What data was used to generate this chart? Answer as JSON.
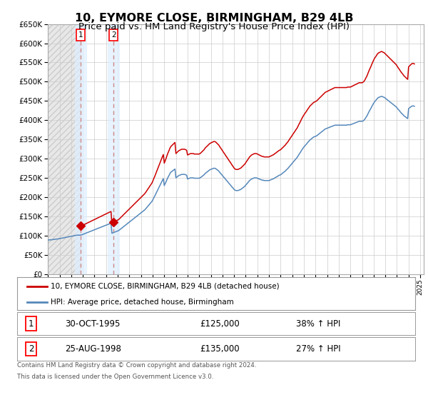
{
  "title": "10, EYMORE CLOSE, BIRMINGHAM, B29 4LB",
  "subtitle": "Price paid vs. HM Land Registry's House Price Index (HPI)",
  "title_fontsize": 11.5,
  "subtitle_fontsize": 9.5,
  "bg_color": "#ffffff",
  "grid_color": "#cccccc",
  "ylim": [
    0,
    650000
  ],
  "yticks": [
    0,
    50000,
    100000,
    150000,
    200000,
    250000,
    300000,
    350000,
    400000,
    450000,
    500000,
    550000,
    600000,
    650000
  ],
  "transactions": [
    {
      "year": 1995.83,
      "price": 125000,
      "label": "1",
      "date_str": "30-OCT-1995",
      "price_str": "£125,000",
      "pct": "38% ↑ HPI"
    },
    {
      "year": 1998.65,
      "price": 135000,
      "label": "2",
      "date_str": "25-AUG-1998",
      "price_str": "£135,000",
      "pct": "27% ↑ HPI"
    }
  ],
  "red_line_color": "#cc0000",
  "blue_line_color": "#5588bb",
  "vline_color": "#dd6666",
  "legend_label_red": "10, EYMORE CLOSE, BIRMINGHAM, B29 4LB (detached house)",
  "legend_label_blue": "HPI: Average price, detached house, Birmingham",
  "footer_line1": "Contains HM Land Registry data © Crown copyright and database right 2024.",
  "footer_line2": "This data is licensed under the Open Government Licence v3.0.",
  "hpi_years": [
    1993.0,
    1993.08,
    1993.17,
    1993.25,
    1993.33,
    1993.42,
    1993.5,
    1993.58,
    1993.67,
    1993.75,
    1993.83,
    1993.92,
    1994.0,
    1994.08,
    1994.17,
    1994.25,
    1994.33,
    1994.42,
    1994.5,
    1994.58,
    1994.67,
    1994.75,
    1994.83,
    1994.92,
    1995.0,
    1995.08,
    1995.17,
    1995.25,
    1995.33,
    1995.42,
    1995.5,
    1995.58,
    1995.67,
    1995.75,
    1995.83,
    1995.92,
    1996.0,
    1996.08,
    1996.17,
    1996.25,
    1996.33,
    1996.42,
    1996.5,
    1996.58,
    1996.67,
    1996.75,
    1996.83,
    1996.92,
    1997.0,
    1997.08,
    1997.17,
    1997.25,
    1997.33,
    1997.42,
    1997.5,
    1997.58,
    1997.67,
    1997.75,
    1997.83,
    1997.92,
    1998.0,
    1998.08,
    1998.17,
    1998.25,
    1998.33,
    1998.42,
    1998.5,
    1998.58,
    1998.67,
    1998.75,
    1998.83,
    1998.92,
    1999.0,
    1999.08,
    1999.17,
    1999.25,
    1999.33,
    1999.42,
    1999.5,
    1999.58,
    1999.67,
    1999.75,
    1999.83,
    1999.92,
    2000.0,
    2000.08,
    2000.17,
    2000.25,
    2000.33,
    2000.42,
    2000.5,
    2000.58,
    2000.67,
    2000.75,
    2000.83,
    2000.92,
    2001.0,
    2001.08,
    2001.17,
    2001.25,
    2001.33,
    2001.42,
    2001.5,
    2001.58,
    2001.67,
    2001.75,
    2001.83,
    2001.92,
    2002.0,
    2002.08,
    2002.17,
    2002.25,
    2002.33,
    2002.42,
    2002.5,
    2002.58,
    2002.67,
    2002.75,
    2002.83,
    2002.92,
    2003.0,
    2003.08,
    2003.17,
    2003.25,
    2003.33,
    2003.42,
    2003.5,
    2003.58,
    2003.67,
    2003.75,
    2003.83,
    2003.92,
    2004.0,
    2004.08,
    2004.17,
    2004.25,
    2004.33,
    2004.42,
    2004.5,
    2004.58,
    2004.67,
    2004.75,
    2004.83,
    2004.92,
    2005.0,
    2005.08,
    2005.17,
    2005.25,
    2005.33,
    2005.42,
    2005.5,
    2005.58,
    2005.67,
    2005.75,
    2005.83,
    2005.92,
    2006.0,
    2006.08,
    2006.17,
    2006.25,
    2006.33,
    2006.42,
    2006.5,
    2006.58,
    2006.67,
    2006.75,
    2006.83,
    2006.92,
    2007.0,
    2007.08,
    2007.17,
    2007.25,
    2007.33,
    2007.42,
    2007.5,
    2007.58,
    2007.67,
    2007.75,
    2007.83,
    2007.92,
    2008.0,
    2008.08,
    2008.17,
    2008.25,
    2008.33,
    2008.42,
    2008.5,
    2008.58,
    2008.67,
    2008.75,
    2008.83,
    2008.92,
    2009.0,
    2009.08,
    2009.17,
    2009.25,
    2009.33,
    2009.42,
    2009.5,
    2009.58,
    2009.67,
    2009.75,
    2009.83,
    2009.92,
    2010.0,
    2010.08,
    2010.17,
    2010.25,
    2010.33,
    2010.42,
    2010.5,
    2010.58,
    2010.67,
    2010.75,
    2010.83,
    2010.92,
    2011.0,
    2011.08,
    2011.17,
    2011.25,
    2011.33,
    2011.42,
    2011.5,
    2011.58,
    2011.67,
    2011.75,
    2011.83,
    2011.92,
    2012.0,
    2012.08,
    2012.17,
    2012.25,
    2012.33,
    2012.42,
    2012.5,
    2012.58,
    2012.67,
    2012.75,
    2012.83,
    2012.92,
    2013.0,
    2013.08,
    2013.17,
    2013.25,
    2013.33,
    2013.42,
    2013.5,
    2013.58,
    2013.67,
    2013.75,
    2013.83,
    2013.92,
    2014.0,
    2014.08,
    2014.17,
    2014.25,
    2014.33,
    2014.42,
    2014.5,
    2014.58,
    2014.67,
    2014.75,
    2014.83,
    2014.92,
    2015.0,
    2015.08,
    2015.17,
    2015.25,
    2015.33,
    2015.42,
    2015.5,
    2015.58,
    2015.67,
    2015.75,
    2015.83,
    2015.92,
    2016.0,
    2016.08,
    2016.17,
    2016.25,
    2016.33,
    2016.42,
    2016.5,
    2016.58,
    2016.67,
    2016.75,
    2016.83,
    2016.92,
    2017.0,
    2017.08,
    2017.17,
    2017.25,
    2017.33,
    2017.42,
    2017.5,
    2017.58,
    2017.67,
    2017.75,
    2017.83,
    2017.92,
    2018.0,
    2018.08,
    2018.17,
    2018.25,
    2018.33,
    2018.42,
    2018.5,
    2018.58,
    2018.67,
    2018.75,
    2018.83,
    2018.92,
    2019.0,
    2019.08,
    2019.17,
    2019.25,
    2019.33,
    2019.42,
    2019.5,
    2019.58,
    2019.67,
    2019.75,
    2019.83,
    2019.92,
    2020.0,
    2020.08,
    2020.17,
    2020.25,
    2020.33,
    2020.42,
    2020.5,
    2020.58,
    2020.67,
    2020.75,
    2020.83,
    2020.92,
    2021.0,
    2021.08,
    2021.17,
    2021.25,
    2021.33,
    2021.42,
    2021.5,
    2021.58,
    2021.67,
    2021.75,
    2021.83,
    2021.92,
    2022.0,
    2022.08,
    2022.17,
    2022.25,
    2022.33,
    2022.42,
    2022.5,
    2022.58,
    2022.67,
    2022.75,
    2022.83,
    2022.92,
    2023.0,
    2023.08,
    2023.17,
    2023.25,
    2023.33,
    2023.42,
    2023.5,
    2023.58,
    2023.67,
    2023.75,
    2023.83,
    2023.92,
    2024.0,
    2024.08,
    2024.17,
    2024.25,
    2024.33,
    2024.42,
    2024.5
  ],
  "hpi_values": [
    88000,
    88500,
    89000,
    89000,
    89000,
    89500,
    90000,
    90000,
    90500,
    91000,
    91000,
    91500,
    92000,
    92500,
    93000,
    93500,
    94000,
    94500,
    95000,
    95500,
    96000,
    96500,
    97000,
    97500,
    98000,
    98500,
    99000,
    99500,
    100000,
    100500,
    101000,
    101000,
    101000,
    101000,
    101500,
    102000,
    103000,
    104000,
    105000,
    106000,
    107000,
    108000,
    109000,
    110000,
    111000,
    112000,
    113000,
    114000,
    115000,
    116000,
    117000,
    118000,
    119000,
    120000,
    121000,
    122000,
    123000,
    124000,
    125000,
    126000,
    127000,
    128000,
    129000,
    130000,
    131000,
    132000,
    106000,
    107000,
    108000,
    109000,
    110000,
    111000,
    112000,
    113000,
    115000,
    117000,
    119000,
    121000,
    123000,
    125000,
    127000,
    129000,
    131000,
    133000,
    135000,
    137000,
    139000,
    141000,
    143000,
    145000,
    147000,
    149000,
    151000,
    153000,
    155000,
    157000,
    159000,
    161000,
    163000,
    165000,
    167000,
    170000,
    173000,
    176000,
    179000,
    182000,
    185000,
    188000,
    192000,
    197000,
    202000,
    207000,
    212000,
    218000,
    223000,
    228000,
    233000,
    238000,
    243000,
    248000,
    230000,
    235000,
    241000,
    247000,
    252000,
    257000,
    262000,
    265000,
    267000,
    269000,
    271000,
    273000,
    250000,
    252000,
    254000,
    256000,
    257000,
    258000,
    259000,
    259000,
    259000,
    259000,
    258000,
    257000,
    247000,
    248000,
    249000,
    250000,
    250000,
    250000,
    250000,
    249000,
    249000,
    249000,
    249000,
    249000,
    249000,
    250000,
    252000,
    254000,
    256000,
    258000,
    261000,
    263000,
    265000,
    267000,
    269000,
    271000,
    272000,
    273000,
    274000,
    275000,
    275000,
    274000,
    272000,
    270000,
    268000,
    265000,
    262000,
    259000,
    256000,
    253000,
    250000,
    247000,
    244000,
    241000,
    238000,
    235000,
    232000,
    229000,
    226000,
    223000,
    220000,
    218000,
    217000,
    217000,
    217000,
    218000,
    219000,
    220000,
    222000,
    224000,
    226000,
    228000,
    231000,
    234000,
    237000,
    240000,
    243000,
    245000,
    247000,
    248000,
    249000,
    250000,
    250000,
    250000,
    249000,
    248000,
    247000,
    246000,
    245000,
    244000,
    244000,
    243000,
    243000,
    243000,
    243000,
    243000,
    243000,
    244000,
    245000,
    246000,
    247000,
    248000,
    250000,
    251000,
    253000,
    254000,
    256000,
    257000,
    258000,
    260000,
    262000,
    264000,
    266000,
    268000,
    271000,
    273000,
    276000,
    279000,
    282000,
    285000,
    288000,
    291000,
    294000,
    297000,
    300000,
    303000,
    307000,
    311000,
    315000,
    319000,
    323000,
    327000,
    330000,
    333000,
    336000,
    339000,
    342000,
    345000,
    348000,
    350000,
    352000,
    354000,
    356000,
    357000,
    358000,
    359000,
    361000,
    363000,
    365000,
    367000,
    369000,
    371000,
    373000,
    375000,
    377000,
    378000,
    379000,
    380000,
    381000,
    382000,
    383000,
    384000,
    385000,
    386000,
    387000,
    387000,
    387000,
    387000,
    387000,
    387000,
    387000,
    387000,
    387000,
    387000,
    387000,
    387000,
    387000,
    388000,
    388000,
    388000,
    388000,
    389000,
    390000,
    391000,
    392000,
    393000,
    394000,
    395000,
    396000,
    397000,
    397000,
    397000,
    397000,
    398000,
    400000,
    403000,
    407000,
    411000,
    416000,
    421000,
    426000,
    430000,
    435000,
    440000,
    444000,
    448000,
    451000,
    454000,
    457000,
    459000,
    460000,
    461000,
    462000,
    461000,
    460000,
    459000,
    457000,
    455000,
    453000,
    451000,
    449000,
    447000,
    445000,
    443000,
    441000,
    439000,
    437000,
    435000,
    432000,
    429000,
    426000,
    423000,
    420000,
    417000,
    415000,
    412000,
    410000,
    408000,
    406000,
    404000,
    430000,
    432000,
    434000,
    436000,
    437000,
    437000,
    436000
  ],
  "hpi_base": 101500,
  "purchase1_price": 125000,
  "purchase1_year": 1995.83,
  "purchase2_price": 135000,
  "purchase2_year": 1998.65,
  "xlim_start": 1993.0,
  "xlim_end": 2025.3
}
